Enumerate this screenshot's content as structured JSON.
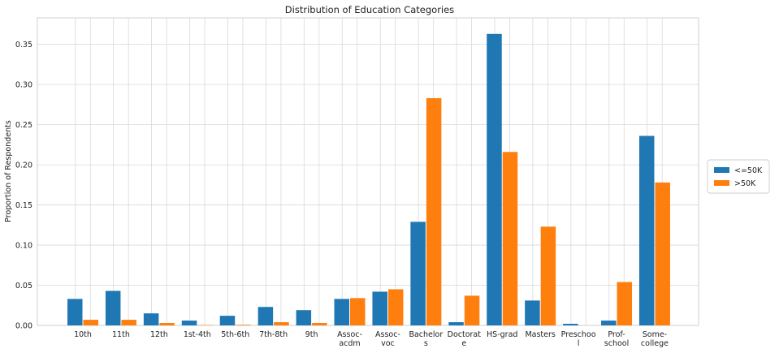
{
  "chart_data": {
    "type": "bar",
    "title": "Distribution of Education Categories",
    "xlabel": "",
    "ylabel": "Proportion of Respondents",
    "ylim": [
      0,
      0.383
    ],
    "yticks": [
      0.0,
      0.05,
      0.1,
      0.15,
      0.2,
      0.25,
      0.3,
      0.35
    ],
    "ytick_labels": [
      "0.00",
      "0.05",
      "0.10",
      "0.15",
      "0.20",
      "0.25",
      "0.30",
      "0.35"
    ],
    "grid": true,
    "legend_position": "right",
    "categories": [
      [
        "10th"
      ],
      [
        "11th"
      ],
      [
        "12th"
      ],
      [
        "1st-4th"
      ],
      [
        "5th-6th"
      ],
      [
        "7th-8th"
      ],
      [
        "9th"
      ],
      [
        "Assoc-",
        "acdm"
      ],
      [
        "Assoc-",
        "voc"
      ],
      [
        "Bachelor",
        "s"
      ],
      [
        "Doctorat",
        "e"
      ],
      [
        "HS-grad"
      ],
      [
        "Masters"
      ],
      [
        "Preschoo",
        "l"
      ],
      [
        "Prof-",
        "school"
      ],
      [
        "Some-",
        "college"
      ]
    ],
    "series": [
      {
        "name": "<=50K",
        "color": "#1f77b4",
        "values": [
          0.033,
          0.043,
          0.015,
          0.006,
          0.012,
          0.023,
          0.019,
          0.033,
          0.042,
          0.129,
          0.004,
          0.363,
          0.031,
          0.002,
          0.006,
          0.236
        ]
      },
      {
        "name": ">50K",
        "color": "#ff7f0e",
        "values": [
          0.007,
          0.007,
          0.003,
          0.0005,
          0.0008,
          0.004,
          0.003,
          0.034,
          0.045,
          0.283,
          0.037,
          0.216,
          0.123,
          0.0,
          0.054,
          0.178
        ]
      }
    ]
  }
}
